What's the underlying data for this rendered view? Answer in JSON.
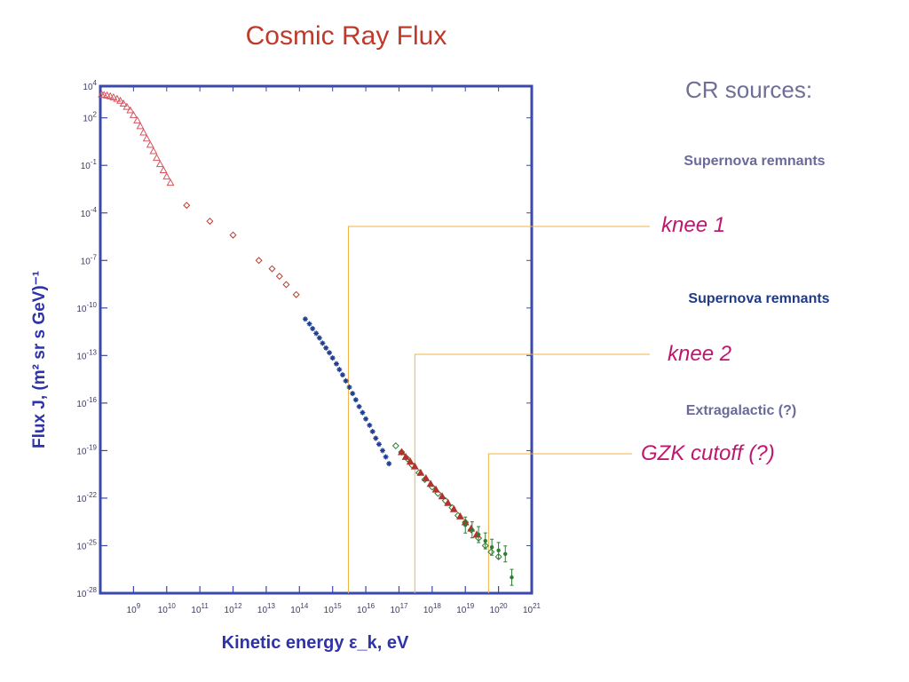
{
  "page": {
    "title": "Cosmic Ray Flux",
    "sidebar": {
      "heading": "CR sources:",
      "sources": [
        "Supernova remnants",
        "Supernova remnants",
        "Extragalactic (?)"
      ]
    }
  },
  "chart_data": {
    "type": "scatter",
    "title": "Cosmic Ray Flux",
    "xlabel": "Kinetic energy ε_k, eV",
    "ylabel": "Flux J, (m² sr s GeV)⁻¹",
    "x_scale": "log",
    "y_scale": "log",
    "xlim": [
      100000000.0,
      1e+21
    ],
    "ylim": [
      1e-28,
      10000.0
    ],
    "grid": false,
    "x_tick_labels": [
      "10^9",
      "10^10",
      "10^11",
      "10^12",
      "10^13",
      "10^14",
      "10^15",
      "10^16",
      "10^17",
      "10^18",
      "10^19",
      "10^20",
      "10^21"
    ],
    "y_tick_labels": [
      "10^4",
      "10^2",
      "10^-1",
      "10^-4",
      "10^-7",
      "10^-10",
      "10^-13",
      "10^-16",
      "10^-19",
      "10^-22",
      "10^-25",
      "10^-28"
    ],
    "series": [
      {
        "marker": "triangle-open",
        "color": "#d9535f",
        "x": [
          110000000.0,
          130000000.0,
          160000000.0,
          200000000.0,
          250000000.0,
          320000000.0,
          400000000.0,
          500000000.0,
          630000000.0,
          800000000.0,
          1000000000.0,
          1300000000.0,
          1600000000.0,
          2000000000.0,
          2500000000.0,
          3200000000.0,
          4000000000.0,
          5000000000.0,
          6300000000.0,
          8000000000.0,
          10000000000.0,
          13000000000.0
        ],
        "y": [
          3000,
          2800,
          2600,
          2300,
          2000,
          1600,
          1200,
          800,
          500,
          300,
          150,
          70,
          30,
          12,
          5,
          2,
          0.8,
          0.3,
          0.12,
          0.05,
          0.02,
          0.008
        ]
      },
      {
        "marker": "diamond-open",
        "color": "#c0392b",
        "x": [
          40000000000.0,
          200000000000.0,
          1000000000000.0,
          6000000000000.0,
          15000000000000.0,
          25000000000000.0,
          40000000000000.0,
          80000000000000.0
        ],
        "y": [
          0.0003,
          3e-05,
          4e-06,
          1e-07,
          3e-08,
          1e-08,
          3e-09,
          7e-10
        ]
      },
      {
        "marker": "star",
        "color": "#1f3f8f",
        "x": [
          150000000000000.0,
          200000000000000.0,
          250000000000000.0,
          320000000000000.0,
          400000000000000.0,
          500000000000000.0,
          630000000000000.0,
          800000000000000.0,
          1000000000000000.0,
          1300000000000000.0,
          1600000000000000.0,
          2000000000000000.0,
          2500000000000000.0,
          3200000000000000.0,
          4000000000000000.0,
          5000000000000000.0,
          6300000000000000.0,
          8000000000000000.0,
          1e+16,
          1.3e+16,
          1.6e+16,
          2e+16,
          2.5e+16,
          3.2e+16,
          4e+16,
          5e+16
        ],
        "y": [
          2e-11,
          1e-11,
          5e-12,
          2.5e-12,
          1.3e-12,
          6e-13,
          3e-13,
          1.5e-13,
          7e-14,
          3e-14,
          1.3e-14,
          6e-15,
          2.5e-15,
          1e-15,
          4e-16,
          1.6e-16,
          6e-17,
          2.5e-17,
          1e-17,
          4e-18,
          1.6e-18,
          6e-19,
          2.5e-19,
          1e-19,
          4e-20,
          1.5e-20
        ]
      },
      {
        "marker": "diamond-open",
        "color": "#2e7d32",
        "x": [
          8e+16,
          1.2e+17,
          1.8e+17,
          2.5e+17,
          4e+17,
          6e+17,
          1e+18,
          1.5e+18,
          2.5e+18,
          4e+18,
          6e+18,
          1e+19,
          1.5e+19,
          2.5e+19,
          4e+19,
          6e+19,
          1e+20
        ],
        "y": [
          2e-19,
          8e-20,
          3e-20,
          1.2e-20,
          4e-21,
          1.5e-21,
          5e-22,
          2e-22,
          7e-23,
          2.5e-23,
          8e-24,
          3e-24,
          1e-24,
          3e-25,
          1e-25,
          4e-26,
          2e-26
        ]
      },
      {
        "marker": "triangle-filled",
        "color": "#b5332a",
        "x": [
          1.2e+17,
          1.6e+17,
          2.2e+17,
          3e+17,
          4.5e+17,
          6.5e+17,
          9e+17,
          1.3e+18,
          2e+18,
          3e+18,
          4.5e+18,
          7e+18,
          1e+19,
          1.5e+19,
          2.2e+19
        ],
        "y": [
          8e-20,
          4e-20,
          2e-20,
          1e-20,
          4e-21,
          1.8e-21,
          8e-22,
          3.5e-22,
          1.3e-22,
          5e-23,
          2e-23,
          7e-24,
          3e-24,
          1.2e-24,
          5e-25
        ]
      },
      {
        "marker": "dot-errorbar",
        "color": "#2e7d32",
        "x": [
          1e+19,
          1.6e+19,
          2.5e+19,
          4e+19,
          6.3e+19,
          1e+20,
          1.6e+20,
          2.5e+20
        ],
        "y": [
          2e-24,
          1e-24,
          5e-25,
          2e-25,
          8e-26,
          5e-26,
          3e-26,
          1e-27
        ]
      }
    ],
    "annotations": [
      {
        "label": "knee 1",
        "x": 3000000000000000.0,
        "color": "#f5b041"
      },
      {
        "label": "knee 2",
        "x": 3e+17,
        "color": "#f5b041"
      },
      {
        "label": "GZK cutoff (?)",
        "x": 5e+19,
        "color": "#f5b041"
      }
    ]
  }
}
